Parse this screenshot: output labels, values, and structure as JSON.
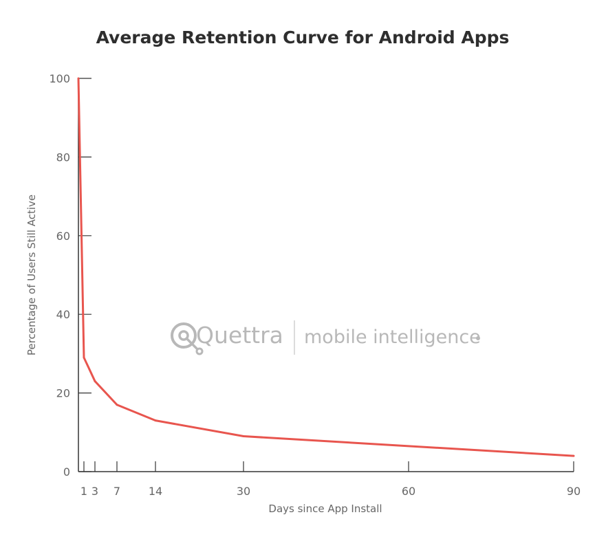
{
  "chart_data": {
    "type": "line",
    "title": "Average Retention Curve for Android Apps",
    "xlabel": "Days since App Install",
    "ylabel": "Percentage of Users Still Active",
    "xlim": [
      0,
      90
    ],
    "ylim": [
      0,
      100
    ],
    "xticks": [
      1,
      3,
      7,
      14,
      30,
      60,
      90
    ],
    "yticks": [
      0,
      20,
      40,
      60,
      80,
      100
    ],
    "grid": false,
    "series": [
      {
        "color": "#e8554e",
        "x": [
          0,
          1,
          3,
          7,
          14,
          30,
          90
        ],
        "y": [
          100,
          29,
          23,
          17,
          13,
          9,
          4
        ]
      }
    ]
  },
  "watermark": {
    "brand": "Quettra",
    "tagline": "mobile intelligence"
  }
}
